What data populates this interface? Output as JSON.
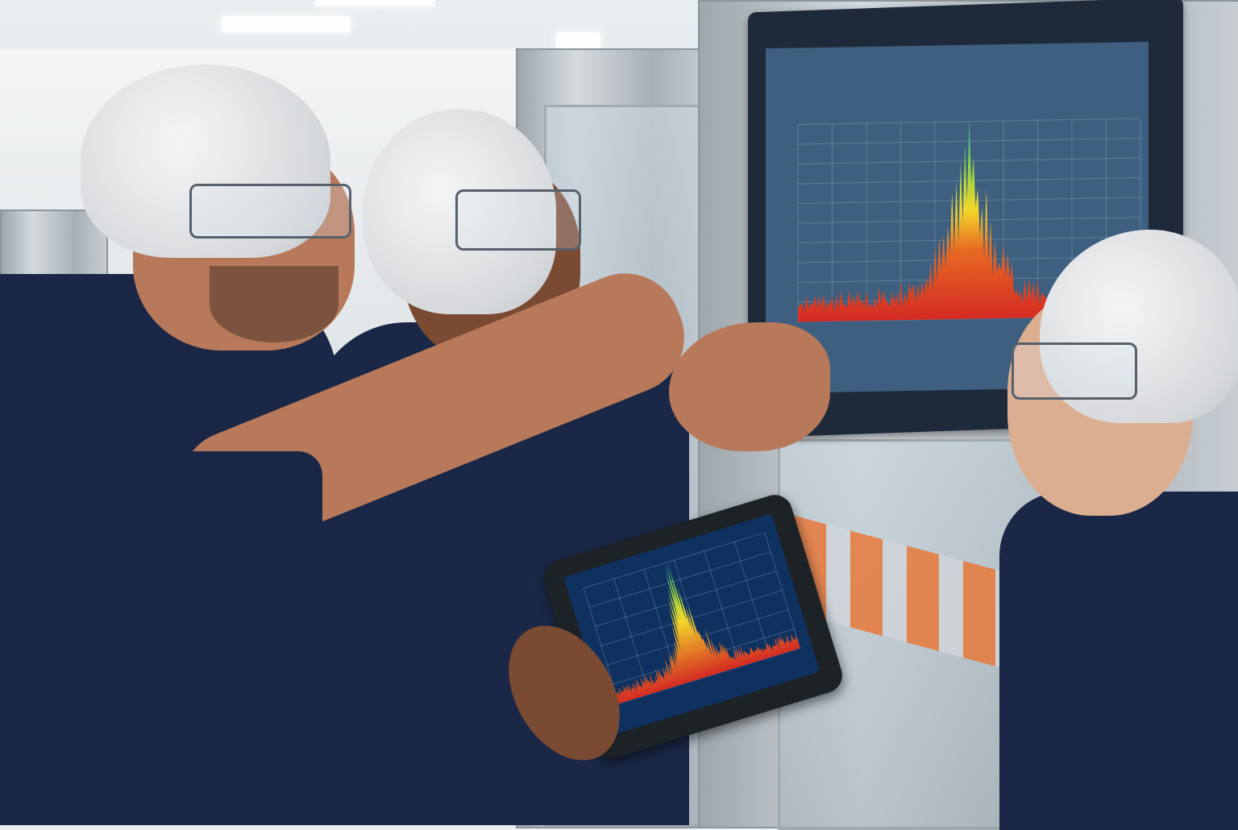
{
  "scene": {
    "colors": {
      "shirt": "#1a2746",
      "monitor_bezel": "#1e2a3a",
      "screen_bg": "#3e5f7f",
      "tablet_screen_bg": "#0f3160",
      "spectrum_low": "#d42a23",
      "spectrum_mid": "#f3d62a",
      "spectrum_high": "#2ec5c9"
    },
    "icons": [
      "hairnet",
      "safety-glasses",
      "monitor",
      "tablet"
    ]
  }
}
